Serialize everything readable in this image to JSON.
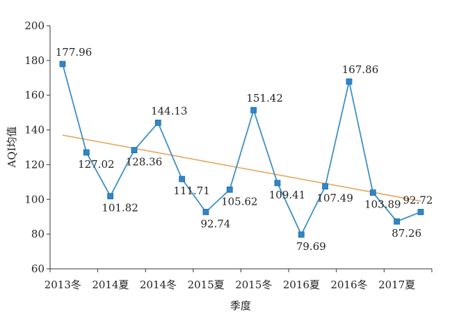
{
  "chart_data": {
    "type": "line",
    "title": "",
    "xlabel": "季度",
    "ylabel": "AQI均值",
    "ylim": [
      60,
      200
    ],
    "yticks": [
      60,
      80,
      100,
      120,
      140,
      160,
      180,
      200
    ],
    "x_tick_labels": [
      "2013冬",
      "2014夏",
      "2014冬",
      "2015夏",
      "2015冬",
      "2016夏",
      "2016冬",
      "2017夏"
    ],
    "series": [
      {
        "values": [
          177.96,
          127.02,
          101.82,
          128.36,
          144.13,
          111.71,
          92.74,
          105.62,
          151.42,
          109.41,
          79.69,
          107.49,
          167.86,
          103.89,
          87.26,
          92.72
        ],
        "data_labels": [
          "177.96",
          "127.02",
          "101.82",
          "128.36",
          "144.13",
          "111.71",
          "92.74",
          "105.62",
          "151.42",
          "109.41",
          "79.69",
          "107.49",
          "167.86",
          "103.89",
          "87.26",
          "92.72"
        ]
      }
    ],
    "trendline": {
      "start": 137.0,
      "end": 99.0
    },
    "grid": false,
    "colors": {
      "series": "#3d8fc4",
      "marker": "#2f86c8",
      "trendline": "#e8a55c",
      "axis": "#333333"
    }
  }
}
